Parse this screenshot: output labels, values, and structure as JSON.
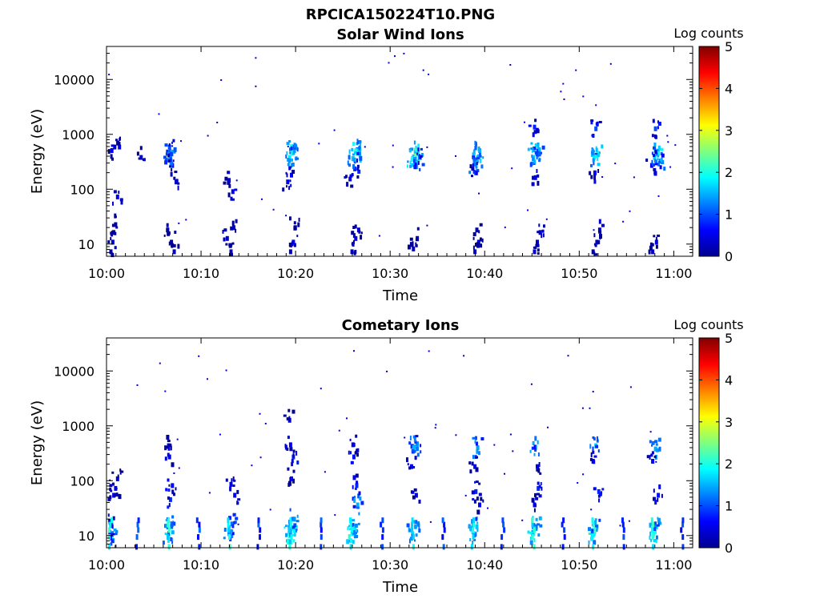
{
  "figure_title": "RPCICA150224T10.PNG",
  "colorbar": {
    "label": "Log counts",
    "min": 0,
    "max": 5,
    "ticks": [
      "0",
      "1",
      "2",
      "3",
      "4",
      "5"
    ]
  },
  "chart_data": [
    {
      "type": "heatmap",
      "title": "Solar Wind Ions",
      "xlabel": "Time",
      "ylabel": "Energy (eV)",
      "y_scale": "log",
      "ylim": [
        6,
        40000
      ],
      "x_ticks": [
        "10:00",
        "10:10",
        "10:20",
        "10:30",
        "10:40",
        "10:50",
        "11:00"
      ],
      "y_ticks": [
        "10",
        "100",
        "1000",
        "10000"
      ],
      "sweep_times_min": [
        0.5,
        6.5,
        13.0,
        19.5,
        26.0,
        32.5,
        39.0,
        45.3,
        51.5,
        57.8
      ],
      "cell_data": [
        {
          "t": 0.3,
          "e": 8,
          "v": 0.2
        },
        {
          "t": 0.5,
          "e": 12,
          "v": 0.4
        },
        {
          "t": 0.6,
          "e": 18,
          "v": 0.3
        },
        {
          "t": 0.8,
          "e": 25,
          "v": 0.2
        },
        {
          "t": 0.4,
          "e": 560,
          "v": 0.6
        },
        {
          "t": 1.2,
          "e": 650,
          "v": 0.5
        },
        {
          "t": 3.5,
          "e": 420,
          "v": 0.4
        },
        {
          "t": 1.0,
          "e": 80,
          "v": 0.5
        },
        {
          "t": 6.3,
          "e": 20,
          "v": 0.3
        },
        {
          "t": 6.7,
          "e": 12,
          "v": 0.2
        },
        {
          "t": 7.0,
          "e": 8,
          "v": 0.3
        },
        {
          "t": 6.4,
          "e": 380,
          "v": 1.4
        },
        {
          "t": 6.6,
          "e": 460,
          "v": 1.6
        },
        {
          "t": 6.5,
          "e": 650,
          "v": 1.0
        },
        {
          "t": 6.8,
          "e": 300,
          "v": 0.6
        },
        {
          "t": 7.2,
          "e": 150,
          "v": 0.4
        },
        {
          "t": 13.0,
          "e": 8,
          "v": 0.3
        },
        {
          "t": 12.6,
          "e": 14,
          "v": 0.4
        },
        {
          "t": 13.3,
          "e": 22,
          "v": 0.3
        },
        {
          "t": 13.2,
          "e": 100,
          "v": 0.6
        },
        {
          "t": 12.8,
          "e": 160,
          "v": 0.4
        },
        {
          "t": 19.3,
          "e": 8,
          "v": 0.3
        },
        {
          "t": 19.6,
          "e": 12,
          "v": 0.6
        },
        {
          "t": 19.8,
          "e": 22,
          "v": 0.4
        },
        {
          "t": 19.2,
          "e": 420,
          "v": 1.8
        },
        {
          "t": 19.5,
          "e": 500,
          "v": 2.0
        },
        {
          "t": 19.7,
          "e": 560,
          "v": 1.4
        },
        {
          "t": 19.4,
          "e": 200,
          "v": 0.6
        },
        {
          "t": 19.0,
          "e": 150,
          "v": 0.5
        },
        {
          "t": 25.8,
          "e": 8,
          "v": 0.3
        },
        {
          "t": 26.2,
          "e": 14,
          "v": 0.5
        },
        {
          "t": 26.5,
          "e": 20,
          "v": 0.4
        },
        {
          "t": 25.9,
          "e": 400,
          "v": 1.6
        },
        {
          "t": 26.3,
          "e": 500,
          "v": 2.1
        },
        {
          "t": 26.6,
          "e": 600,
          "v": 1.5
        },
        {
          "t": 26.1,
          "e": 260,
          "v": 0.8
        },
        {
          "t": 25.6,
          "e": 170,
          "v": 0.5
        },
        {
          "t": 32.3,
          "e": 9,
          "v": 0.4
        },
        {
          "t": 32.7,
          "e": 14,
          "v": 0.3
        },
        {
          "t": 32.2,
          "e": 400,
          "v": 1.9
        },
        {
          "t": 32.5,
          "e": 480,
          "v": 2.4
        },
        {
          "t": 32.8,
          "e": 560,
          "v": 2.0
        },
        {
          "t": 32.6,
          "e": 330,
          "v": 1.3
        },
        {
          "t": 33.0,
          "e": 420,
          "v": 1.1
        },
        {
          "t": 38.8,
          "e": 8,
          "v": 0.3
        },
        {
          "t": 39.2,
          "e": 12,
          "v": 0.4
        },
        {
          "t": 39.0,
          "e": 20,
          "v": 0.2
        },
        {
          "t": 38.8,
          "e": 320,
          "v": 1.4
        },
        {
          "t": 39.1,
          "e": 420,
          "v": 1.8
        },
        {
          "t": 39.3,
          "e": 560,
          "v": 1.5
        },
        {
          "t": 38.9,
          "e": 220,
          "v": 0.8
        },
        {
          "t": 45.1,
          "e": 8,
          "v": 0.3
        },
        {
          "t": 45.4,
          "e": 12,
          "v": 0.3
        },
        {
          "t": 45.7,
          "e": 18,
          "v": 0.4
        },
        {
          "t": 45.0,
          "e": 420,
          "v": 1.6
        },
        {
          "t": 45.3,
          "e": 500,
          "v": 1.9
        },
        {
          "t": 45.6,
          "e": 580,
          "v": 1.5
        },
        {
          "t": 45.2,
          "e": 180,
          "v": 0.6
        },
        {
          "t": 45.1,
          "e": 1500,
          "v": 0.8
        },
        {
          "t": 51.3,
          "e": 8,
          "v": 0.3
        },
        {
          "t": 51.7,
          "e": 12,
          "v": 0.3
        },
        {
          "t": 52.0,
          "e": 20,
          "v": 0.4
        },
        {
          "t": 51.4,
          "e": 420,
          "v": 1.7
        },
        {
          "t": 51.8,
          "e": 500,
          "v": 2.0
        },
        {
          "t": 51.6,
          "e": 1400,
          "v": 1.0
        },
        {
          "t": 51.5,
          "e": 220,
          "v": 0.6
        },
        {
          "t": 57.6,
          "e": 8,
          "v": 0.3
        },
        {
          "t": 58.0,
          "e": 12,
          "v": 0.4
        },
        {
          "t": 57.8,
          "e": 420,
          "v": 1.7
        },
        {
          "t": 58.2,
          "e": 500,
          "v": 1.9
        },
        {
          "t": 58.4,
          "e": 360,
          "v": 1.2
        },
        {
          "t": 57.9,
          "e": 1400,
          "v": 1.0
        },
        {
          "t": 57.5,
          "e": 300,
          "v": 0.6
        }
      ]
    },
    {
      "type": "heatmap",
      "title": "Cometary Ions",
      "xlabel": "Time",
      "ylabel": "Energy (eV)",
      "y_scale": "log",
      "ylim": [
        6,
        40000
      ],
      "x_ticks": [
        "10:00",
        "10:10",
        "10:20",
        "10:30",
        "10:40",
        "10:50",
        "11:00"
      ],
      "y_ticks": [
        "10",
        "100",
        "1000",
        "10000"
      ],
      "sweep_times_min": [
        0.5,
        6.5,
        13.0,
        19.5,
        26.0,
        32.5,
        39.0,
        45.3,
        51.5,
        57.8
      ],
      "low_energy_band_times_min": [
        0.3,
        3.2,
        6.5,
        9.6,
        12.8,
        16.0,
        19.3,
        22.5,
        25.7,
        29.0,
        32.2,
        35.5,
        38.6,
        41.8,
        45.0,
        48.2,
        51.4,
        54.6,
        57.7,
        60.8
      ],
      "cell_data": [
        {
          "t": 0.3,
          "e": 12,
          "v": 1.5
        },
        {
          "t": 0.5,
          "e": 9,
          "v": 1.4
        },
        {
          "t": 0.2,
          "e": 20,
          "v": 1.0
        },
        {
          "t": 0.8,
          "e": 80,
          "v": 0.6
        },
        {
          "t": 0.6,
          "e": 60,
          "v": 0.5
        },
        {
          "t": 1.0,
          "e": 120,
          "v": 0.4
        },
        {
          "t": 6.4,
          "e": 11,
          "v": 1.8
        },
        {
          "t": 6.7,
          "e": 16,
          "v": 1.6
        },
        {
          "t": 6.6,
          "e": 50,
          "v": 0.8
        },
        {
          "t": 6.8,
          "e": 90,
          "v": 0.6
        },
        {
          "t": 6.5,
          "e": 300,
          "v": 0.5
        },
        {
          "t": 6.4,
          "e": 480,
          "v": 0.5
        },
        {
          "t": 12.8,
          "e": 12,
          "v": 1.4
        },
        {
          "t": 13.1,
          "e": 18,
          "v": 1.2
        },
        {
          "t": 13.0,
          "e": 95,
          "v": 0.6
        },
        {
          "t": 13.4,
          "e": 60,
          "v": 0.5
        },
        {
          "t": 19.2,
          "e": 11,
          "v": 2.1
        },
        {
          "t": 19.5,
          "e": 15,
          "v": 1.9
        },
        {
          "t": 19.7,
          "e": 22,
          "v": 1.4
        },
        {
          "t": 19.4,
          "e": 120,
          "v": 0.7
        },
        {
          "t": 19.6,
          "e": 300,
          "v": 0.8
        },
        {
          "t": 19.3,
          "e": 500,
          "v": 0.6
        },
        {
          "t": 19.2,
          "e": 1400,
          "v": 0.4
        },
        {
          "t": 25.8,
          "e": 12,
          "v": 2.0
        },
        {
          "t": 26.1,
          "e": 16,
          "v": 1.8
        },
        {
          "t": 26.4,
          "e": 40,
          "v": 1.5
        },
        {
          "t": 26.3,
          "e": 90,
          "v": 0.8
        },
        {
          "t": 26.0,
          "e": 300,
          "v": 0.7
        },
        {
          "t": 25.9,
          "e": 500,
          "v": 0.6
        },
        {
          "t": 32.2,
          "e": 12,
          "v": 1.8
        },
        {
          "t": 32.5,
          "e": 16,
          "v": 1.6
        },
        {
          "t": 32.4,
          "e": 460,
          "v": 1.6
        },
        {
          "t": 32.7,
          "e": 520,
          "v": 1.3
        },
        {
          "t": 32.1,
          "e": 200,
          "v": 0.6
        },
        {
          "t": 32.6,
          "e": 60,
          "v": 0.5
        },
        {
          "t": 38.7,
          "e": 12,
          "v": 1.8
        },
        {
          "t": 39.0,
          "e": 16,
          "v": 1.6
        },
        {
          "t": 39.1,
          "e": 440,
          "v": 1.4
        },
        {
          "t": 38.9,
          "e": 70,
          "v": 0.8
        },
        {
          "t": 39.3,
          "e": 40,
          "v": 0.6
        },
        {
          "t": 38.8,
          "e": 200,
          "v": 0.5
        },
        {
          "t": 45.0,
          "e": 12,
          "v": 1.9
        },
        {
          "t": 45.3,
          "e": 16,
          "v": 1.6
        },
        {
          "t": 45.2,
          "e": 450,
          "v": 1.5
        },
        {
          "t": 45.5,
          "e": 80,
          "v": 0.8
        },
        {
          "t": 45.1,
          "e": 40,
          "v": 0.6
        },
        {
          "t": 45.4,
          "e": 200,
          "v": 0.5
        },
        {
          "t": 51.4,
          "e": 12,
          "v": 1.9
        },
        {
          "t": 51.7,
          "e": 16,
          "v": 1.6
        },
        {
          "t": 51.6,
          "e": 480,
          "v": 1.6
        },
        {
          "t": 51.9,
          "e": 70,
          "v": 0.8
        },
        {
          "t": 51.3,
          "e": 250,
          "v": 0.6
        },
        {
          "t": 57.7,
          "e": 12,
          "v": 2.0
        },
        {
          "t": 58.0,
          "e": 16,
          "v": 1.7
        },
        {
          "t": 57.9,
          "e": 420,
          "v": 1.5
        },
        {
          "t": 58.2,
          "e": 60,
          "v": 0.7
        },
        {
          "t": 57.6,
          "e": 250,
          "v": 0.6
        }
      ]
    }
  ]
}
